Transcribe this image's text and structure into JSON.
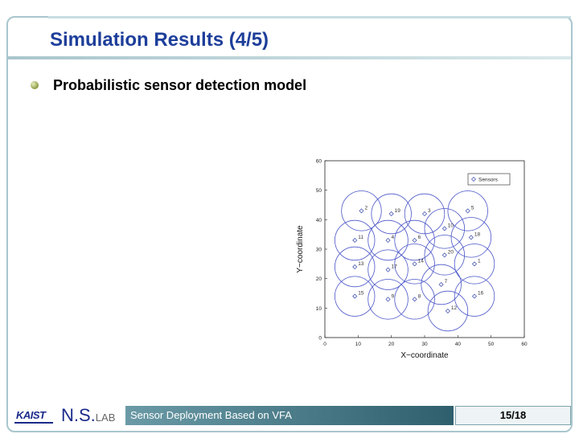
{
  "slide": {
    "title": "Simulation Results (4/5)",
    "bullet": "Probabilistic sensor detection model"
  },
  "plot": {
    "xlabel": "X−coordinate",
    "ylabel": "Y−coordinate",
    "x_ticks": [
      "0",
      "10",
      "20",
      "30",
      "40",
      "50",
      "60"
    ],
    "y_ticks": [
      "0",
      "10",
      "20",
      "30",
      "40",
      "50",
      "60"
    ],
    "xlim": [
      0,
      60
    ],
    "ylim": [
      0,
      60
    ],
    "legend": "Sensors",
    "sensors": [
      {
        "id": "1",
        "x": 45,
        "y": 25
      },
      {
        "id": "2",
        "x": 11,
        "y": 43
      },
      {
        "id": "3",
        "x": 30,
        "y": 42
      },
      {
        "id": "4",
        "x": 19,
        "y": 33
      },
      {
        "id": "5",
        "x": 43,
        "y": 43
      },
      {
        "id": "6",
        "x": 27,
        "y": 33
      },
      {
        "id": "7",
        "x": 35,
        "y": 18
      },
      {
        "id": "8",
        "x": 27,
        "y": 13
      },
      {
        "id": "9",
        "x": 19,
        "y": 13
      },
      {
        "id": "10",
        "x": 36,
        "y": 37
      },
      {
        "id": "11",
        "x": 9,
        "y": 33
      },
      {
        "id": "12",
        "x": 37,
        "y": 9
      },
      {
        "id": "13",
        "x": 9,
        "y": 24
      },
      {
        "id": "14",
        "x": 27,
        "y": 25
      },
      {
        "id": "15",
        "x": 9,
        "y": 14
      },
      {
        "id": "16",
        "x": 45,
        "y": 14
      },
      {
        "id": "17",
        "x": 19,
        "y": 23
      },
      {
        "id": "18",
        "x": 44,
        "y": 34
      },
      {
        "id": "19",
        "x": 20,
        "y": 42
      },
      {
        "id": "20",
        "x": 36,
        "y": 28
      }
    ]
  },
  "footer": {
    "logo": "KAIST",
    "lab": "N.S.",
    "lab_sub": "LAB",
    "caption": "Sensor Deployment Based on VFA",
    "page": "15/18"
  }
}
